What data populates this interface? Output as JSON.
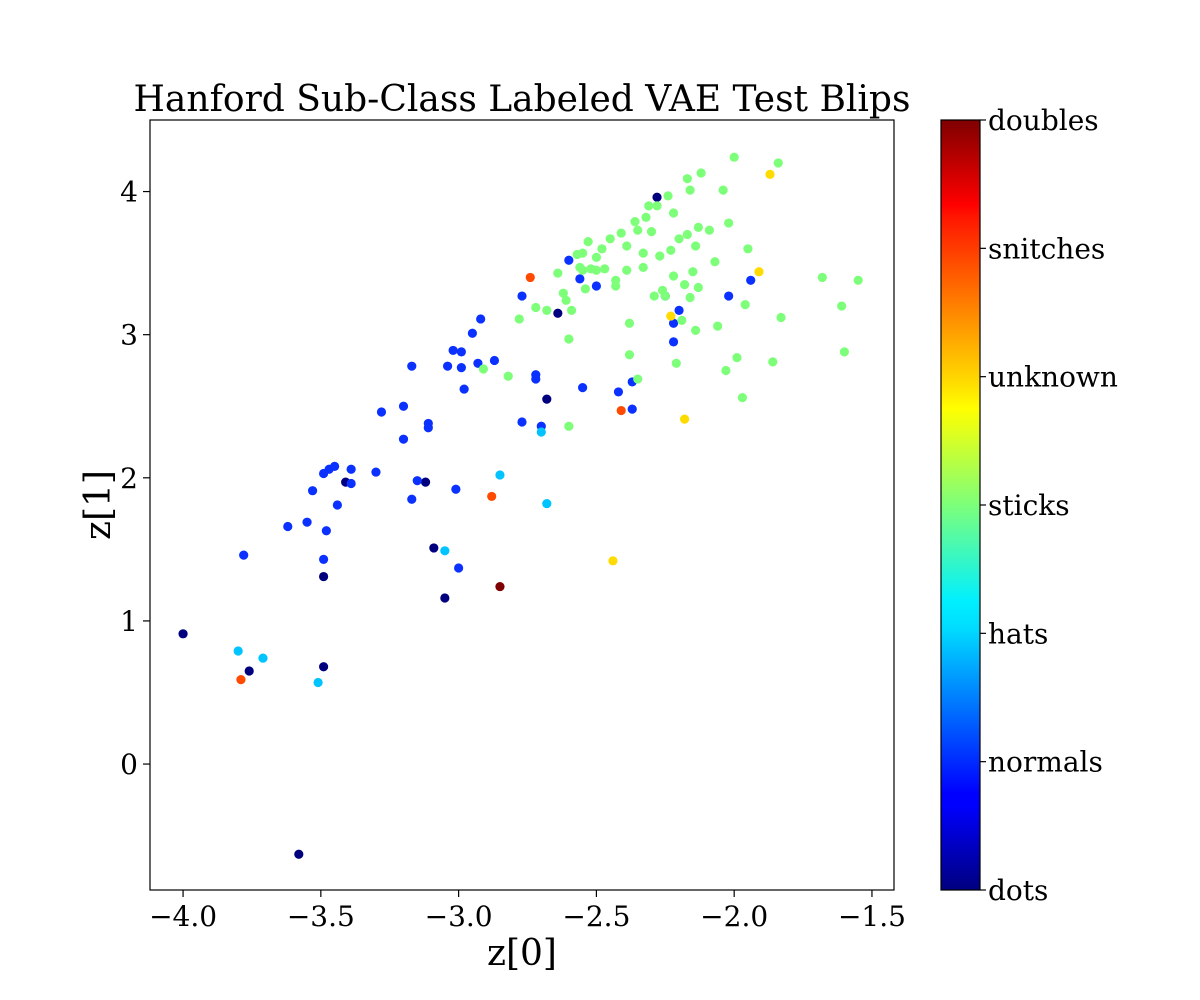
{
  "chart_data": {
    "type": "scatter",
    "title": "Hanford Sub-Class Labeled VAE Test Blips",
    "xlabel": "z[0]",
    "ylabel": "z[1]",
    "xlim": [
      -4.12,
      -1.42
    ],
    "ylim": [
      -0.88,
      4.5
    ],
    "xticks": [
      -4.0,
      -3.5,
      -3.0,
      -2.5,
      -2.0,
      -1.5
    ],
    "xtick_labels": [
      "−4.0",
      "−3.5",
      "−3.0",
      "−2.5",
      "−2.0",
      "−1.5"
    ],
    "yticks": [
      0,
      1,
      2,
      3,
      4
    ],
    "ytick_labels": [
      "0",
      "1",
      "2",
      "3",
      "4"
    ],
    "grid": false,
    "legend": "colorbar-right",
    "colorbar": {
      "colormap": "jet",
      "labels": [
        "dots",
        "normals",
        "hats",
        "sticks",
        "unknown",
        "snitches",
        "doubles"
      ]
    },
    "class_colors": {
      "dots": "#00007f",
      "normals": "#0a31ff",
      "hats": "#00c4ff",
      "sticks": "#7dff7a",
      "unknown": "#ffdb00",
      "snitches": "#ff4a00",
      "doubles": "#7f0000"
    },
    "series": [
      {
        "name": "dots",
        "x": [
          -4.0,
          -3.76,
          -3.58,
          -3.49,
          -3.49,
          -3.41,
          -3.12,
          -3.09,
          -3.05,
          -2.68,
          -2.64,
          -2.28
        ],
        "y": [
          0.91,
          0.65,
          -0.63,
          0.68,
          1.31,
          1.97,
          1.97,
          1.51,
          1.16,
          2.55,
          3.15,
          3.96
        ]
      },
      {
        "name": "normals",
        "x": [
          -3.78,
          -3.62,
          -3.55,
          -3.53,
          -3.49,
          -3.49,
          -3.48,
          -3.47,
          -3.45,
          -3.44,
          -3.39,
          -3.39,
          -3.3,
          -3.28,
          -3.2,
          -3.2,
          -3.17,
          -3.17,
          -3.15,
          -3.11,
          -3.11,
          -3.04,
          -3.02,
          -3.01,
          -3.0,
          -2.99,
          -2.99,
          -2.98,
          -2.95,
          -2.93,
          -2.92,
          -2.87,
          -2.77,
          -2.77,
          -2.72,
          -2.72,
          -2.7,
          -2.6,
          -2.56,
          -2.55,
          -2.5,
          -2.42,
          -2.37,
          -2.37,
          -2.25,
          -2.22,
          -2.22,
          -2.2,
          -2.02,
          -1.94
        ],
        "y": [
          1.46,
          1.66,
          1.69,
          1.91,
          1.43,
          2.03,
          1.63,
          2.06,
          2.08,
          1.81,
          2.06,
          1.96,
          2.04,
          2.46,
          2.5,
          2.27,
          2.78,
          1.85,
          1.98,
          2.38,
          2.35,
          2.78,
          2.89,
          1.92,
          1.37,
          2.88,
          2.77,
          2.62,
          3.01,
          2.8,
          3.11,
          2.82,
          3.27,
          2.39,
          2.69,
          2.72,
          2.36,
          3.52,
          3.39,
          2.63,
          3.34,
          2.6,
          2.48,
          2.67,
          3.27,
          2.95,
          3.08,
          3.17,
          3.27,
          3.38
        ]
      },
      {
        "name": "hats",
        "x": [
          -3.8,
          -3.71,
          -3.51,
          -3.05,
          -2.85,
          -2.7,
          -2.68
        ],
        "y": [
          0.79,
          0.74,
          0.57,
          1.49,
          2.02,
          2.32,
          1.82
        ]
      },
      {
        "name": "sticks",
        "x": [
          -2.91,
          -2.82,
          -2.78,
          -2.72,
          -2.68,
          -2.64,
          -2.62,
          -2.61,
          -2.6,
          -2.6,
          -2.59,
          -2.57,
          -2.56,
          -2.55,
          -2.55,
          -2.54,
          -2.53,
          -2.52,
          -2.5,
          -2.5,
          -2.48,
          -2.47,
          -2.45,
          -2.43,
          -2.43,
          -2.41,
          -2.39,
          -2.39,
          -2.38,
          -2.38,
          -2.36,
          -2.35,
          -2.35,
          -2.33,
          -2.33,
          -2.32,
          -2.31,
          -2.3,
          -2.29,
          -2.28,
          -2.27,
          -2.26,
          -2.25,
          -2.24,
          -2.23,
          -2.22,
          -2.22,
          -2.21,
          -2.2,
          -2.19,
          -2.18,
          -2.17,
          -2.17,
          -2.16,
          -2.16,
          -2.15,
          -2.14,
          -2.14,
          -2.13,
          -2.13,
          -2.12,
          -2.09,
          -2.07,
          -2.06,
          -2.04,
          -2.03,
          -2.02,
          -2.0,
          -1.99,
          -1.97,
          -1.96,
          -1.95,
          -1.86,
          -1.84,
          -1.83,
          -1.68,
          -1.61,
          -1.6,
          -1.55
        ],
        "y": [
          2.76,
          2.71,
          3.11,
          3.19,
          3.17,
          3.43,
          3.29,
          3.24,
          2.97,
          2.36,
          3.17,
          3.56,
          3.47,
          3.57,
          3.45,
          3.32,
          3.65,
          3.46,
          3.54,
          3.45,
          3.6,
          3.46,
          3.67,
          3.34,
          3.38,
          3.71,
          3.62,
          3.45,
          2.86,
          3.08,
          3.79,
          2.69,
          3.73,
          3.57,
          3.47,
          3.82,
          3.9,
          3.72,
          3.27,
          3.9,
          3.55,
          3.31,
          3.27,
          3.97,
          3.59,
          3.85,
          3.41,
          2.8,
          3.67,
          3.1,
          3.35,
          3.7,
          4.09,
          4.01,
          3.26,
          3.44,
          3.62,
          3.03,
          3.75,
          3.33,
          4.13,
          3.73,
          3.51,
          3.06,
          4.01,
          2.75,
          3.78,
          4.24,
          2.84,
          2.56,
          3.21,
          3.6,
          2.81,
          4.2,
          3.12,
          3.4,
          3.2,
          2.88,
          3.38
        ]
      },
      {
        "name": "unknown",
        "x": [
          -2.44,
          -2.23,
          -2.18,
          -1.91,
          -1.87
        ],
        "y": [
          1.42,
          3.13,
          2.41,
          3.44,
          4.12
        ]
      },
      {
        "name": "snitches",
        "x": [
          -3.79,
          -2.88,
          -2.74,
          -2.41
        ],
        "y": [
          0.59,
          1.87,
          3.4,
          2.47
        ]
      },
      {
        "name": "doubles",
        "x": [
          -2.85
        ],
        "y": [
          1.24
        ]
      }
    ]
  }
}
